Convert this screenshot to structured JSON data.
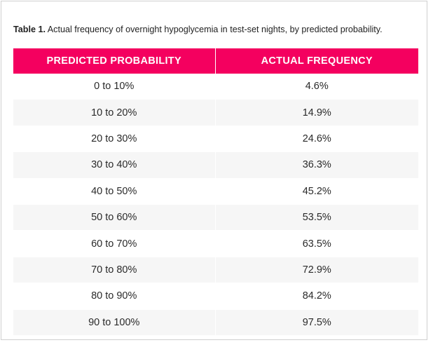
{
  "caption": {
    "label": "Table 1.",
    "text": " Actual frequency of overnight hypoglycemia in test-set nights, by predicted probability."
  },
  "table": {
    "headers": [
      "PREDICTED PROBABILITY",
      "ACTUAL FREQUENCY"
    ],
    "rows": [
      [
        "0 to 10%",
        "4.6%"
      ],
      [
        "10 to 20%",
        "14.9%"
      ],
      [
        "20 to 30%",
        "24.6%"
      ],
      [
        "30 to 40%",
        "36.3%"
      ],
      [
        "40 to 50%",
        "45.2%"
      ],
      [
        "50 to 60%",
        "53.5%"
      ],
      [
        "60 to 70%",
        "63.5%"
      ],
      [
        "70 to 80%",
        "72.9%"
      ],
      [
        "80 to 90%",
        "84.2%"
      ],
      [
        "90 to 100%",
        "97.5%"
      ]
    ]
  },
  "colors": {
    "header_background": "#f4005f",
    "header_text": "#ffffff",
    "stripe": "#f6f6f6"
  }
}
